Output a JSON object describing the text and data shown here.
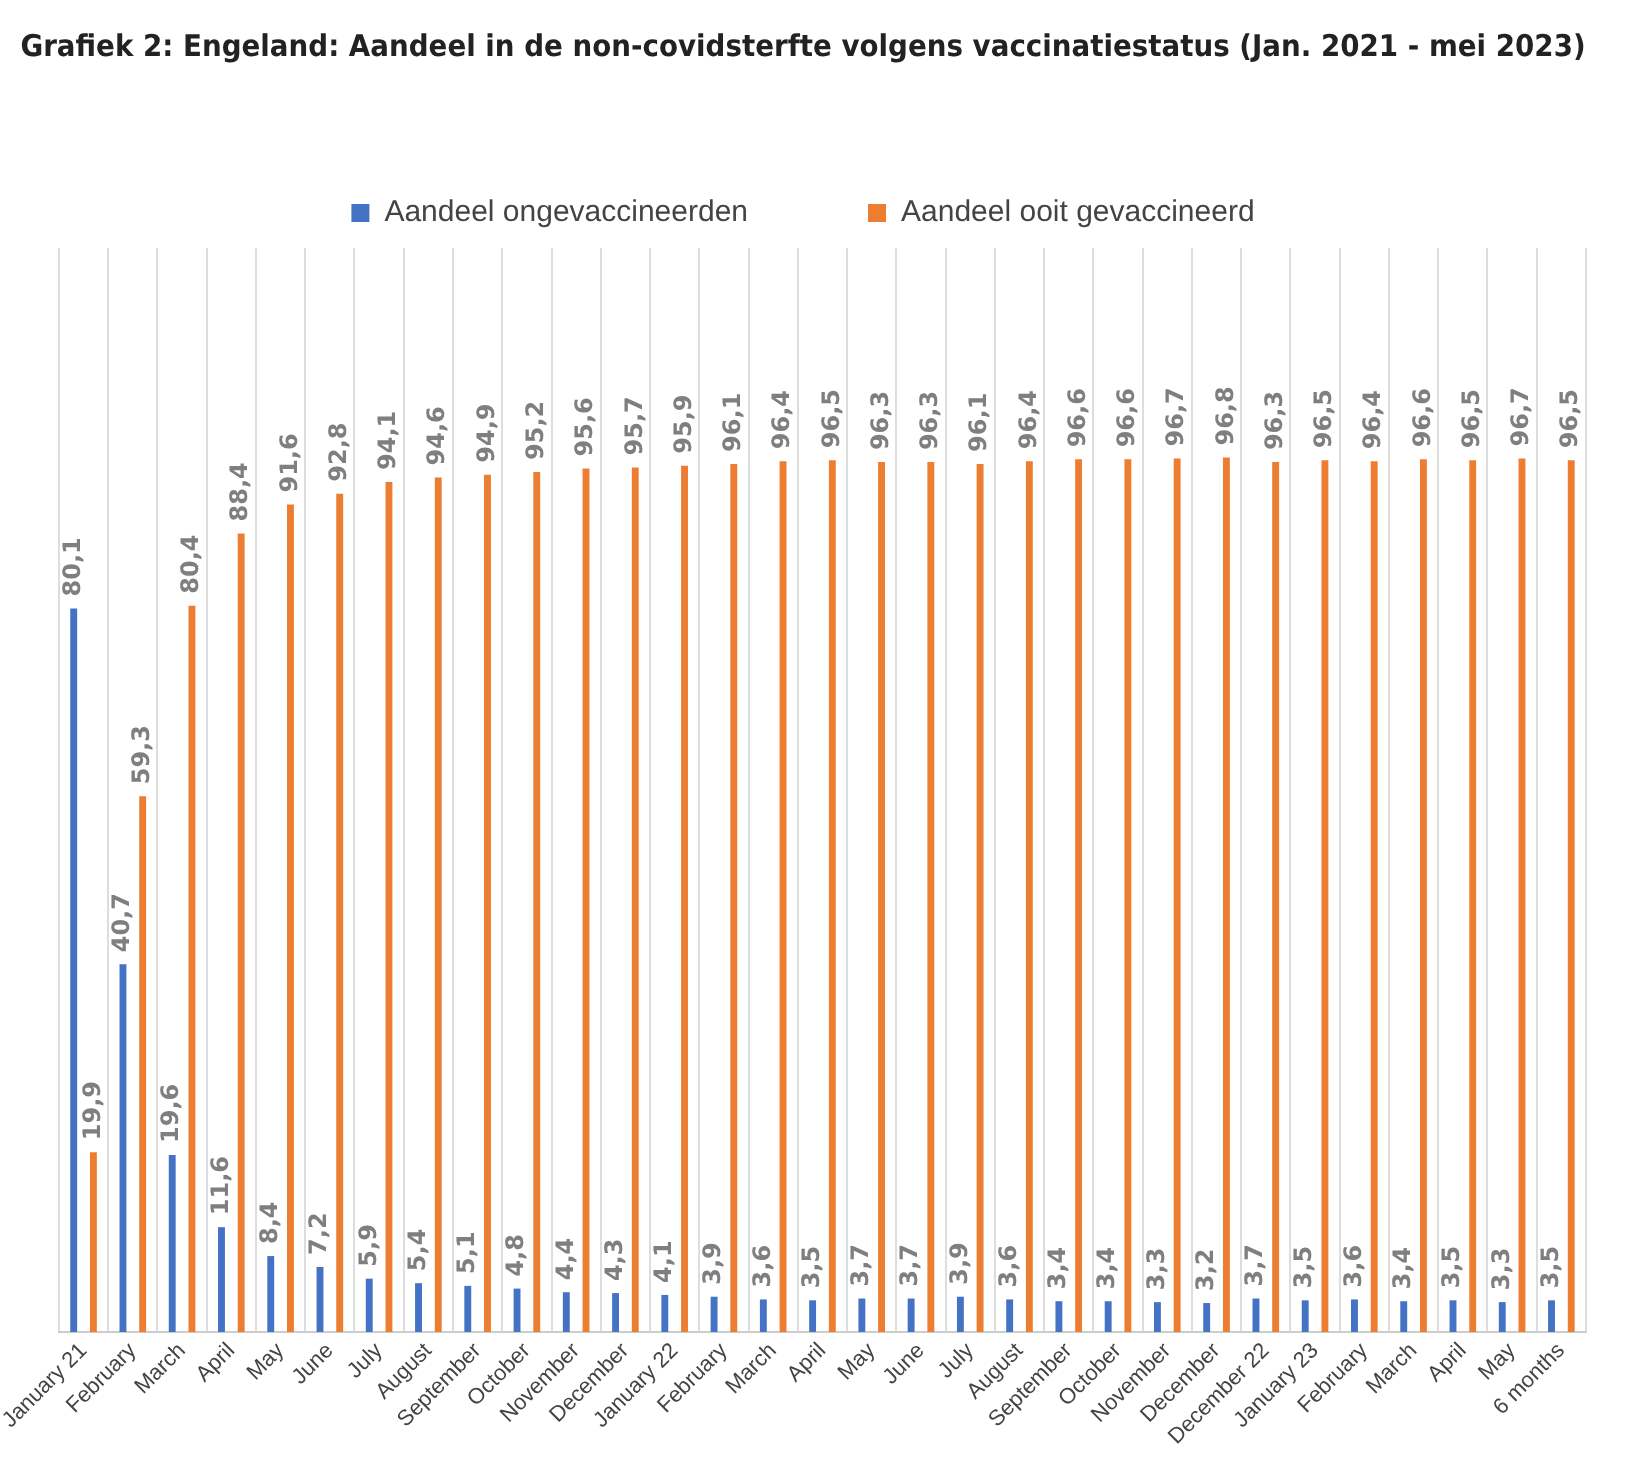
{
  "chart_data": {
    "type": "bar",
    "title": "Grafiek 2: Engeland: Aandeel in de non-covidsterfte volgens vaccinatiestatus (Jan. 2021 - mei 2023)",
    "categories": [
      "January 21",
      "February",
      "March",
      "April",
      "May",
      "June",
      "July",
      "August",
      "September",
      "October",
      "November",
      "December",
      "January 22",
      "February",
      "March",
      "April",
      "May",
      "June",
      "July",
      "August",
      "September",
      "October",
      "November",
      "December",
      "December 22",
      "January 23",
      "February",
      "March",
      "April",
      "May",
      "6 months"
    ],
    "series": [
      {
        "name": "Aandeel ongevaccineerden",
        "color": "#4472c4",
        "values": [
          80.1,
          40.7,
          19.6,
          11.6,
          8.4,
          7.2,
          5.9,
          5.4,
          5.1,
          4.8,
          4.4,
          4.3,
          4.1,
          3.9,
          3.6,
          3.5,
          3.7,
          3.7,
          3.9,
          3.6,
          3.4,
          3.4,
          3.3,
          3.2,
          3.7,
          3.5,
          3.6,
          3.4,
          3.5,
          3.3,
          3.5
        ],
        "value_labels": [
          "80,1",
          "40,7",
          "19,6",
          "11,6",
          "8,4",
          "7,2",
          "5,9",
          "5,4",
          "5,1",
          "4,8",
          "4,4",
          "4,3",
          "4,1",
          "3,9",
          "3,6",
          "3,5",
          "3,7",
          "3,7",
          "3,9",
          "3,6",
          "3,4",
          "3,4",
          "3,3",
          "3,2",
          "3,7",
          "3,5",
          "3,6",
          "3,4",
          "3,5",
          "3,3",
          "3,5"
        ]
      },
      {
        "name": "Aandeel ooit gevaccineerd",
        "color": "#ed7d31",
        "values": [
          19.9,
          59.3,
          80.4,
          88.4,
          91.6,
          92.8,
          94.1,
          94.6,
          94.9,
          95.2,
          95.6,
          95.7,
          95.9,
          96.1,
          96.4,
          96.5,
          96.3,
          96.3,
          96.1,
          96.4,
          96.6,
          96.6,
          96.7,
          96.8,
          96.3,
          96.5,
          96.4,
          96.6,
          96.5,
          96.7,
          96.5
        ],
        "value_labels": [
          "19,9",
          "59,3",
          "80,4",
          "88,4",
          "91,6",
          "92,8",
          "94,1",
          "94,6",
          "94,9",
          "95,2",
          "95,6",
          "95,7",
          "95,9",
          "96,1",
          "96,4",
          "96,5",
          "96,3",
          "96,3",
          "96,1",
          "96,4",
          "96,6",
          "96,6",
          "96,7",
          "96,8",
          "96,3",
          "96,5",
          "96,4",
          "96,6",
          "96,5",
          "96,7",
          "96,5"
        ]
      }
    ],
    "grid": "x",
    "legend": "top",
    "tick_labels": "x"
  }
}
